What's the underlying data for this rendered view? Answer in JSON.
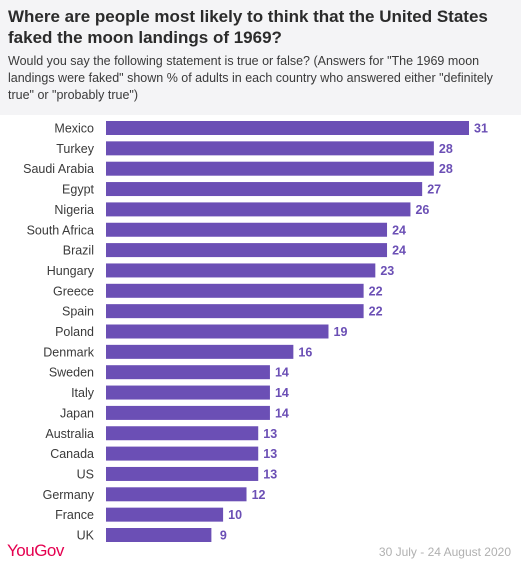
{
  "chart_data": {
    "type": "bar",
    "orientation": "horizontal",
    "title": "Where are people most likely to think that the United States faked the moon landings of 1969?",
    "subtitle": "Would you say the following statement is true or false? (Answers for \"The 1969 moon landings were faked\" shown % of adults in each country who answered either \"definitely true\" or \"probably true\")",
    "categories": [
      "Mexico",
      "Turkey",
      "Saudi Arabia",
      "Egypt",
      "Nigeria",
      "South Africa",
      "Brazil",
      "Hungary",
      "Greece",
      "Spain",
      "Poland",
      "Denmark",
      "Sweden",
      "Italy",
      "Japan",
      "Australia",
      "Canada",
      "US",
      "Germany",
      "France",
      "UK"
    ],
    "values": [
      31,
      28,
      28,
      27,
      26,
      24,
      24,
      23,
      22,
      22,
      19,
      16,
      14,
      14,
      14,
      13,
      13,
      13,
      12,
      10,
      9
    ],
    "xlim": [
      0,
      31
    ],
    "grid": false,
    "bar_color": "#6b4fb5"
  },
  "brand": "YouGov",
  "footnote": "30 July - 24 August 2020"
}
